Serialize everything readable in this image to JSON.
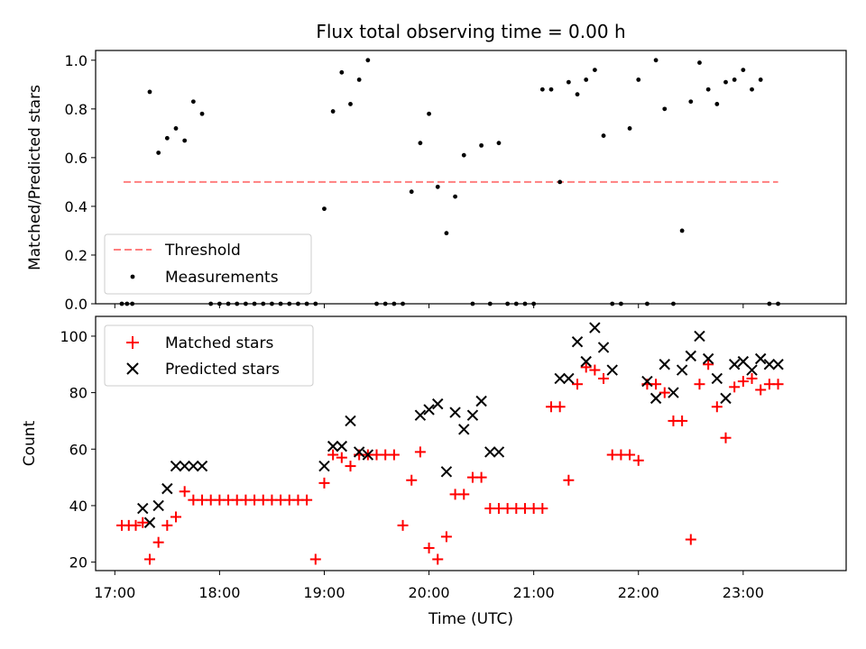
{
  "chart_data": [
    {
      "type": "scatter",
      "title": "Flux total observing time = 0.00 h",
      "xlabel": "",
      "ylabel": "Matched/Predicted stars",
      "ylim": [
        0,
        1.04
      ],
      "xlim": [
        "16:49",
        "23:59"
      ],
      "x_ticks": [
        "17:00",
        "18:00",
        "19:00",
        "20:00",
        "21:00",
        "22:00",
        "23:00"
      ],
      "y_ticks": [
        "0.0",
        "0.2",
        "0.4",
        "0.6",
        "0.8",
        "1.0"
      ],
      "legend_position": "lower-left",
      "series": [
        {
          "name": "Threshold",
          "kind": "dashed-line",
          "color": "#ff7f7f",
          "x": [
            "17:05",
            "23:20"
          ],
          "y": [
            0.5,
            0.5
          ]
        },
        {
          "name": "Measurements",
          "kind": "dot",
          "color": "#000000",
          "x": [
            "17:04",
            "17:07",
            "17:10",
            "17:20",
            "17:25",
            "17:30",
            "17:35",
            "17:40",
            "17:45",
            "17:50",
            "17:55",
            "18:00",
            "18:05",
            "18:10",
            "18:15",
            "18:20",
            "18:25",
            "18:30",
            "18:35",
            "18:40",
            "18:45",
            "18:50",
            "18:55",
            "19:00",
            "19:05",
            "19:10",
            "19:15",
            "19:20",
            "19:25",
            "19:30",
            "19:35",
            "19:40",
            "19:45",
            "19:50",
            "19:55",
            "20:00",
            "20:05",
            "20:10",
            "20:15",
            "20:20",
            "20:25",
            "20:30",
            "20:35",
            "20:40",
            "20:45",
            "20:50",
            "20:55",
            "21:00",
            "21:05",
            "21:10",
            "21:15",
            "21:20",
            "21:25",
            "21:30",
            "21:35",
            "21:40",
            "21:45",
            "21:50",
            "21:55",
            "22:00",
            "22:05",
            "22:10",
            "22:15",
            "22:20",
            "22:25",
            "22:30",
            "22:35",
            "22:40",
            "22:45",
            "22:50",
            "22:55",
            "23:00",
            "23:05",
            "23:10",
            "23:15",
            "23:20"
          ],
          "y": [
            0,
            0,
            0,
            0.87,
            0.62,
            0.68,
            0.72,
            0.67,
            0.83,
            0.78,
            0,
            0,
            0,
            0,
            0,
            0,
            0,
            0,
            0,
            0,
            0,
            0,
            0,
            0.39,
            0.79,
            0.95,
            0.82,
            0.92,
            1.0,
            0,
            0,
            0,
            0,
            0.46,
            0.66,
            0.78,
            0.48,
            0.29,
            0.44,
            0.61,
            0,
            0.65,
            0,
            0.66,
            0,
            0,
            0,
            0,
            0.88,
            0.88,
            0.5,
            0.91,
            0.86,
            0.92,
            0.96,
            0.69,
            0,
            0,
            0.72,
            0.92,
            0,
            1.0,
            0.8,
            0,
            0.3,
            0.83,
            0.99,
            0.88,
            0.82,
            0.91,
            0.92,
            0.96,
            0.88,
            0.92,
            0,
            0
          ]
        }
      ]
    },
    {
      "type": "scatter",
      "title": "",
      "xlabel": "Time (UTC)",
      "ylabel": "Count",
      "ylim": [
        17,
        107
      ],
      "xlim": [
        "16:49",
        "23:59"
      ],
      "x_ticks": [
        "17:00",
        "18:00",
        "19:00",
        "20:00",
        "21:00",
        "22:00",
        "23:00"
      ],
      "y_ticks": [
        "20",
        "40",
        "60",
        "80",
        "100"
      ],
      "legend_position": "top-left",
      "series": [
        {
          "name": "Matched stars",
          "marker": "plus",
          "color": "#ff0000",
          "x": [
            "17:04",
            "17:08",
            "17:12",
            "17:16",
            "17:20",
            "17:25",
            "17:30",
            "17:35",
            "17:40",
            "17:45",
            "17:50",
            "17:55",
            "18:00",
            "18:05",
            "18:10",
            "18:15",
            "18:20",
            "18:25",
            "18:30",
            "18:35",
            "18:40",
            "18:45",
            "18:50",
            "18:55",
            "19:00",
            "19:05",
            "19:10",
            "19:15",
            "19:20",
            "19:25",
            "19:30",
            "19:35",
            "19:40",
            "19:45",
            "19:50",
            "19:55",
            "20:00",
            "20:05",
            "20:10",
            "20:15",
            "20:20",
            "20:25",
            "20:30",
            "20:35",
            "20:40",
            "20:45",
            "20:50",
            "20:55",
            "21:00",
            "21:05",
            "21:10",
            "21:15",
            "21:20",
            "21:25",
            "21:30",
            "21:35",
            "21:40",
            "21:45",
            "21:50",
            "21:55",
            "22:00",
            "22:05",
            "22:10",
            "22:15",
            "22:20",
            "22:25",
            "22:30",
            "22:35",
            "22:40",
            "22:45",
            "22:50",
            "22:55",
            "23:00",
            "23:05",
            "23:10",
            "23:15",
            "23:20"
          ],
          "y": [
            33,
            33,
            33,
            34,
            21,
            27,
            33,
            36,
            45,
            42,
            42,
            42,
            42,
            42,
            42,
            42,
            42,
            42,
            42,
            42,
            42,
            42,
            42,
            21,
            48,
            58,
            57,
            54,
            58,
            58,
            58,
            58,
            58,
            33,
            49,
            59,
            25,
            21,
            29,
            44,
            44,
            50,
            50,
            39,
            39,
            39,
            39,
            39,
            39,
            39,
            75,
            75,
            49,
            83,
            89,
            88,
            85,
            58,
            58,
            58,
            56,
            83,
            83,
            80,
            70,
            70,
            28,
            83,
            90,
            75,
            64,
            82,
            84,
            85,
            81,
            83,
            83
          ]
        },
        {
          "name": "Predicted stars",
          "marker": "x",
          "color": "#000000",
          "x": [
            "17:16",
            "17:20",
            "17:25",
            "17:30",
            "17:35",
            "17:40",
            "17:45",
            "17:50",
            "19:00",
            "19:05",
            "19:10",
            "19:15",
            "19:20",
            "19:25",
            "19:55",
            "20:00",
            "20:05",
            "20:10",
            "20:15",
            "20:20",
            "20:25",
            "20:30",
            "20:35",
            "20:40",
            "21:15",
            "21:20",
            "21:25",
            "21:30",
            "21:35",
            "21:40",
            "21:45",
            "22:05",
            "22:10",
            "22:15",
            "22:20",
            "22:25",
            "22:30",
            "22:35",
            "22:40",
            "22:45",
            "22:50",
            "22:55",
            "23:00",
            "23:05",
            "23:10",
            "23:15",
            "23:20"
          ],
          "y": [
            39,
            34,
            40,
            46,
            54,
            54,
            54,
            54,
            54,
            61,
            61,
            70,
            59,
            58,
            72,
            74,
            76,
            52,
            73,
            67,
            72,
            77,
            59,
            59,
            85,
            85,
            98,
            91,
            103,
            96,
            88,
            84,
            78,
            90,
            80,
            88,
            93,
            100,
            92,
            85,
            78,
            90,
            91,
            88,
            92,
            90,
            90
          ]
        }
      ]
    }
  ]
}
